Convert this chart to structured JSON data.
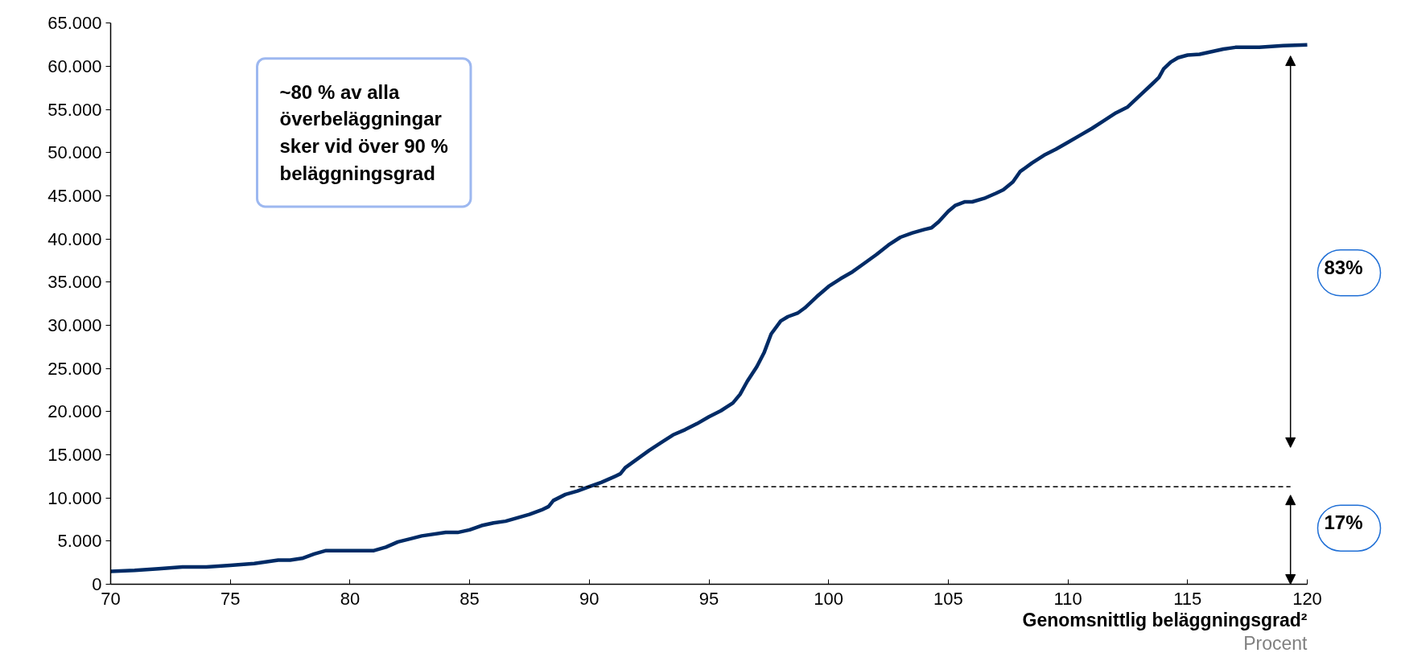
{
  "chart_data": {
    "type": "line",
    "xlabel": "Genomsnittlig beläggningsgrad²",
    "x": [
      70,
      71,
      72,
      73,
      74,
      75,
      76,
      77,
      77.5,
      78,
      78.5,
      79,
      80,
      81,
      81.5,
      82,
      83,
      84,
      84.5,
      85,
      85.5,
      86,
      86.5,
      87,
      87.5,
      88,
      88.3,
      88.5,
      89,
      89.5,
      90,
      90.5,
      91,
      91.3,
      91.5,
      92,
      92.5,
      93,
      93.5,
      94,
      94.5,
      95,
      95.5,
      96,
      96.3,
      96.6,
      97,
      97.3,
      97.6,
      98,
      98.3,
      98.7,
      99,
      99.5,
      100,
      100.5,
      101,
      101.5,
      102,
      102.5,
      103,
      103.5,
      104,
      104.3,
      104.6,
      105,
      105.3,
      105.7,
      106,
      106.5,
      107,
      107.3,
      107.7,
      108,
      108.5,
      109,
      109.5,
      110,
      110.5,
      111,
      111.5,
      112,
      112.5,
      113,
      113.5,
      113.8,
      114,
      114.3,
      114.6,
      115,
      115.5,
      116,
      116.5,
      117,
      118,
      119,
      120
    ],
    "series": [
      {
        "color": "#002b66",
        "values": [
          1500,
          1600,
          1800,
          2000,
          2000,
          2200,
          2400,
          2800,
          2800,
          3000,
          3500,
          3900,
          3900,
          3900,
          4300,
          4900,
          5600,
          6000,
          6000,
          6300,
          6800,
          7100,
          7300,
          7700,
          8100,
          8600,
          9000,
          9700,
          10400,
          10800,
          11300,
          11800,
          12400,
          12800,
          13500,
          14500,
          15500,
          16400,
          17300,
          17900,
          18600,
          19400,
          20100,
          21000,
          22000,
          23500,
          25200,
          26800,
          29000,
          30500,
          31000,
          31400,
          32000,
          33300,
          34500,
          35400,
          36200,
          37200,
          38200,
          39300,
          40200,
          40700,
          41100,
          41300,
          42000,
          43200,
          43900,
          44300,
          44300,
          44700,
          45300,
          45700,
          46600,
          47800,
          48800,
          49700,
          50400,
          51200,
          52000,
          52800,
          53700,
          54600,
          55300,
          56600,
          57900,
          58700,
          59700,
          60500,
          61000,
          61300,
          61400,
          61700,
          62000,
          62200,
          62200,
          62400,
          62500
        ]
      }
    ],
    "xlim": [
      70,
      120
    ],
    "xticks": [
      70,
      75,
      80,
      85,
      90,
      95,
      100,
      105,
      110,
      115,
      120
    ],
    "ylim": [
      0,
      65000
    ],
    "yticks": [
      0,
      {
        "value": 5000,
        "label": "5.000"
      },
      {
        "value": 10000,
        "label": "10.000"
      },
      {
        "value": 15000,
        "label": "15.000"
      },
      {
        "value": 20000,
        "label": "20.000"
      },
      {
        "value": 25000,
        "label": "25.000"
      },
      {
        "value": 30000,
        "label": "30.000"
      },
      {
        "value": 35000,
        "label": "35.000"
      },
      {
        "value": 40000,
        "label": "40.000"
      },
      {
        "value": 45000,
        "label": "45.000"
      },
      {
        "value": 50000,
        "label": "50.000"
      },
      {
        "value": 55000,
        "label": "55.000"
      },
      {
        "value": 60000,
        "label": "60.000"
      },
      {
        "value": 65000,
        "label": "65.000"
      }
    ],
    "ref_lines": [
      {
        "axis": "y",
        "value": 11300,
        "line_style": "dashed",
        "color": "#000000"
      }
    ],
    "annotations": [
      "~80 % av alla överbeläggningar sker vid över 90 % beläggningsgrad",
      "83%",
      "17%",
      "Procent"
    ],
    "grid": false,
    "marker": "none",
    "line_style": "solid"
  }
}
